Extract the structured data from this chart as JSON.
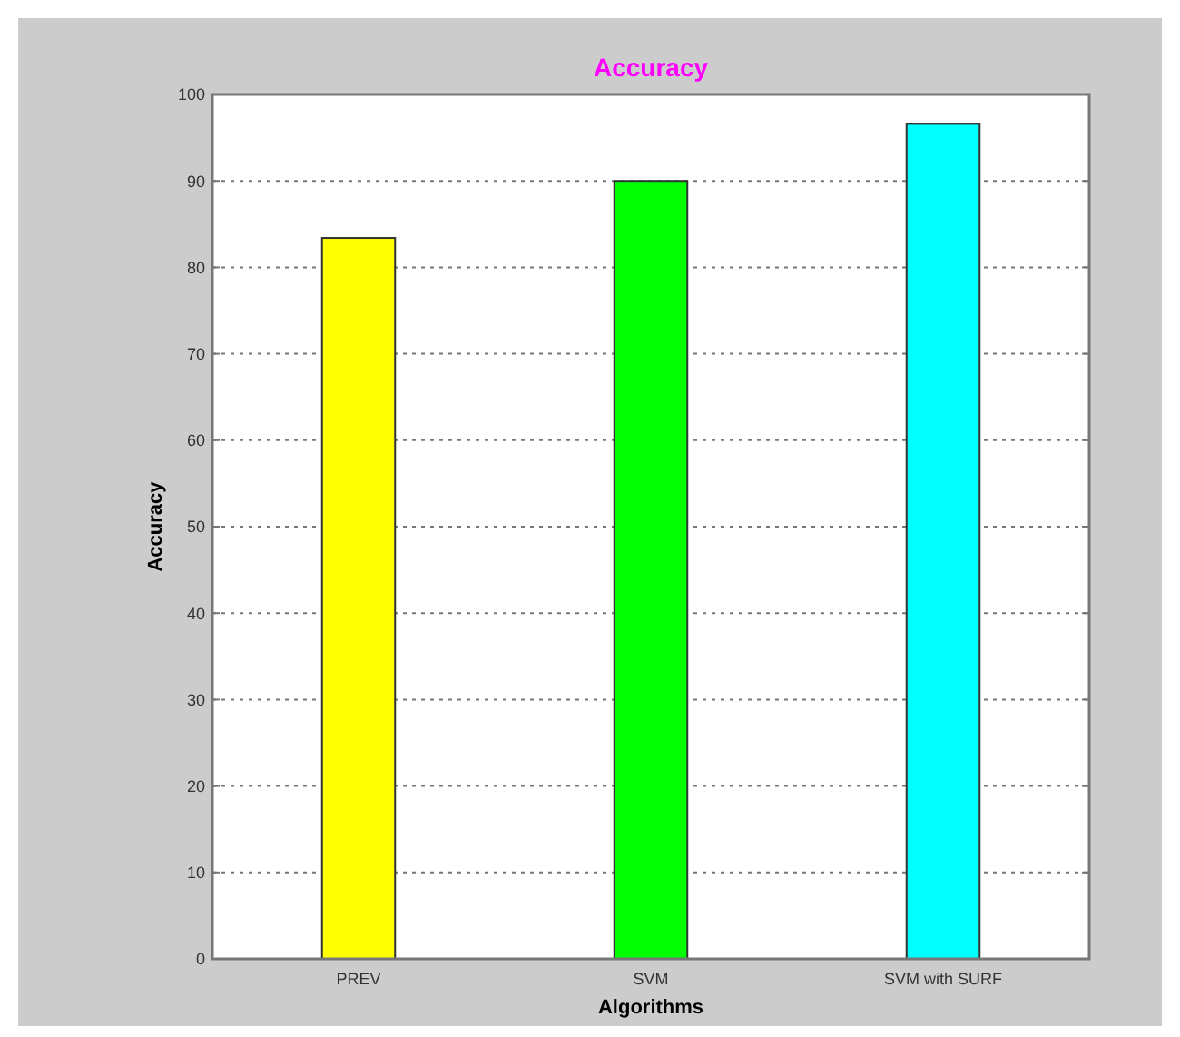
{
  "chart_data": {
    "type": "bar",
    "title": "Accuracy",
    "xlabel": "Algorithms",
    "ylabel": "Accuracy",
    "categories": [
      "PREV",
      "SVM",
      "SVM with SURF"
    ],
    "values": [
      83.4,
      90,
      96.6
    ],
    "colors": [
      "#ffff00",
      "#00ff00",
      "#00ffff"
    ],
    "ylim": [
      0,
      100
    ],
    "yticks": [
      0,
      10,
      20,
      30,
      40,
      50,
      60,
      70,
      80,
      90,
      100
    ],
    "grid": "y",
    "line_style": "dotted"
  }
}
